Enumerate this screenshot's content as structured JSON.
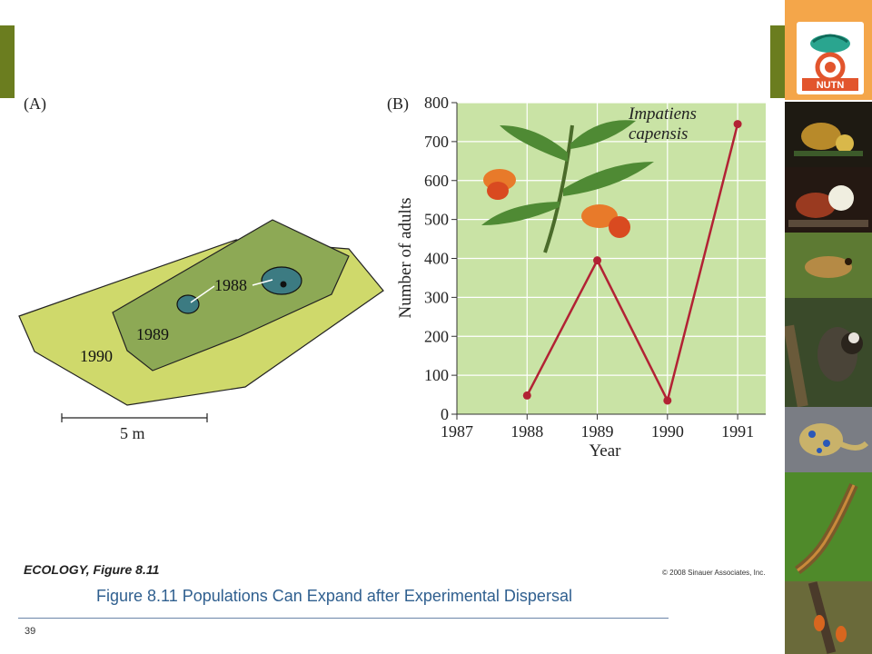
{
  "slide": {
    "page_number": "39",
    "caption": "Figure 8.11  Populations Can Expand after Experimental Dispersal",
    "figure_title_italic": "ECOLOGY,",
    "figure_title_rest": " Figure 8.11",
    "copyright": "© 2008 Sinauer Associates, Inc.",
    "accent_color": "#6b7d1f",
    "caption_color": "#2f5f8f",
    "logo_text": "NUTN"
  },
  "panel_a": {
    "label": "(A)",
    "year_labels": [
      "1990",
      "1989",
      "1988"
    ],
    "scale_text": "5 m",
    "colors": {
      "1990": "#ccd966",
      "1989": "#8aa951",
      "1988": "#3d7a80"
    }
  },
  "chart_data": {
    "type": "line",
    "panel_label": "(B)",
    "xlabel": "Year",
    "ylabel": "Number of adults",
    "x_ticks": [
      "1987",
      "1988",
      "1989",
      "1990",
      "1991"
    ],
    "y_ticks": [
      "0",
      "100",
      "200",
      "300",
      "400",
      "500",
      "600",
      "700",
      "800"
    ],
    "xlim": [
      1987,
      1991.4
    ],
    "ylim": [
      0,
      800
    ],
    "grid": true,
    "annotation": [
      "Impatiens",
      "capensis"
    ],
    "series": [
      {
        "color": "#b22234",
        "x": [
          1988,
          1989,
          1990,
          1991
        ],
        "values": [
          48,
          395,
          35,
          745
        ]
      }
    ]
  }
}
